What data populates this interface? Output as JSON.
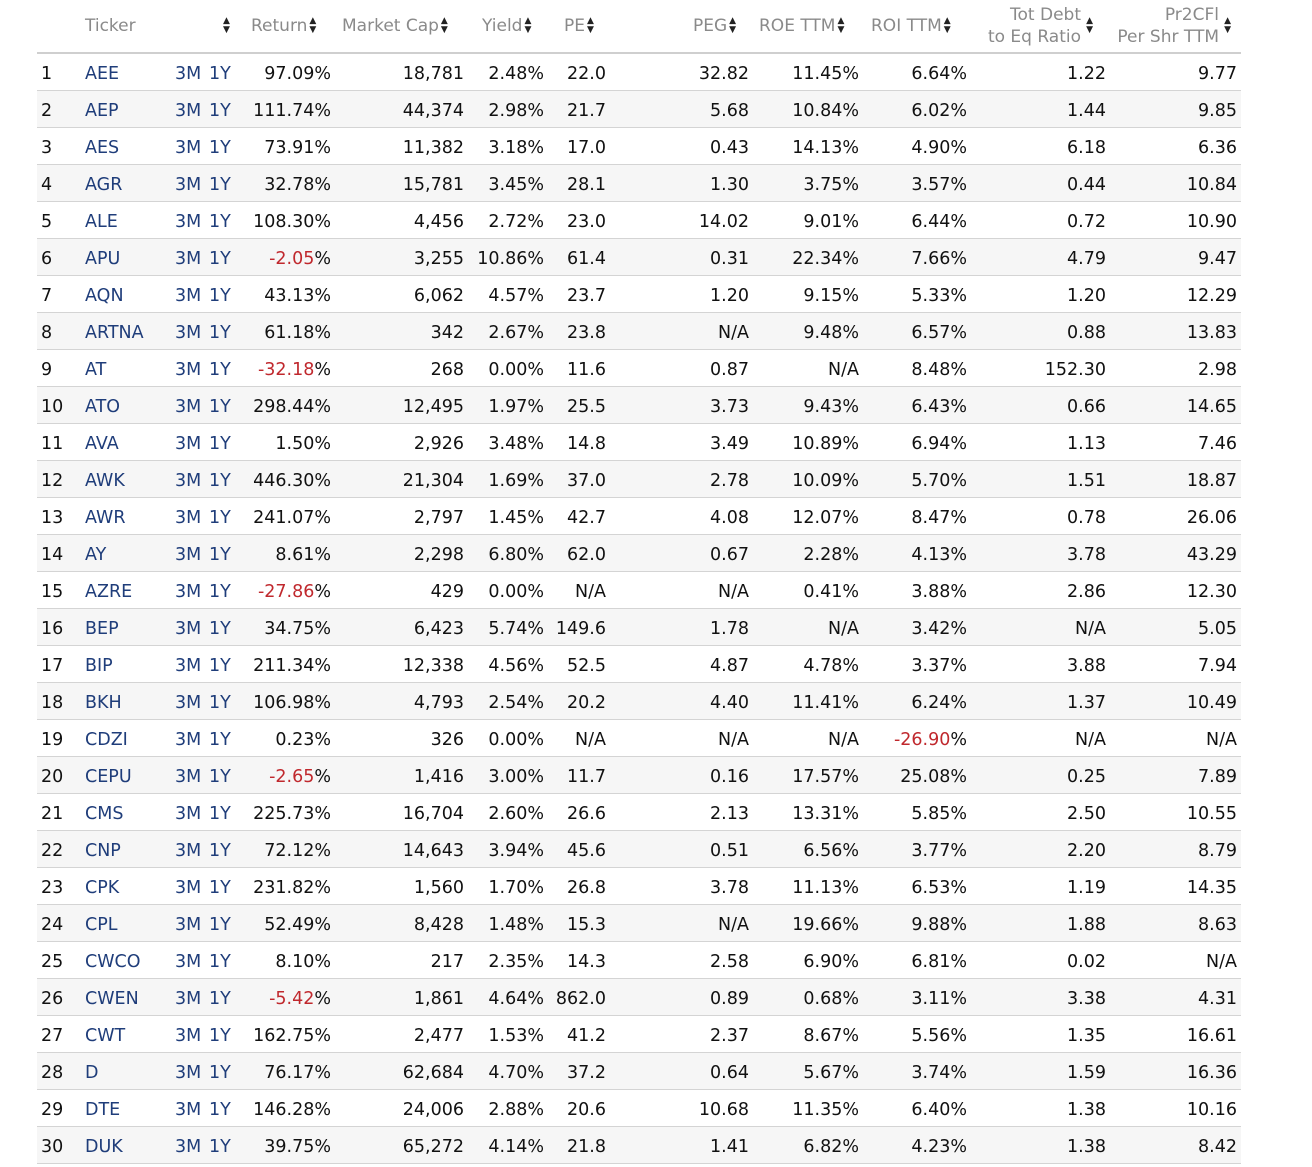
{
  "headers": {
    "ticker": "Ticker",
    "ret": "Return",
    "mcap": "Market Cap",
    "yield": "Yield",
    "pe": "PE",
    "peg": "PEG",
    "roe": "ROE TTM",
    "roi": "ROI TTM",
    "debt_line1": "Tot Debt",
    "debt_line2": "to Eq Ratio",
    "pr2_line1": "Pr2CFl",
    "pr2_line2": "Per Shr TTM"
  },
  "period_links": {
    "m3": "3M",
    "y1": "1Y"
  },
  "colors": {
    "link": "#1f3d7a",
    "negative": "#c0282d",
    "header_text": "#8a8a8a"
  },
  "rows": [
    {
      "n": "1",
      "ticker": "AEE",
      "ret": "97.09",
      "mcap": "18,781",
      "yld": "2.48%",
      "pe": "22.0",
      "peg": "32.82",
      "roe": "11.45%",
      "roi": "6.64%",
      "debt": "1.22",
      "pr2": "9.77"
    },
    {
      "n": "2",
      "ticker": "AEP",
      "ret": "111.74",
      "mcap": "44,374",
      "yld": "2.98%",
      "pe": "21.7",
      "peg": "5.68",
      "roe": "10.84%",
      "roi": "6.02%",
      "debt": "1.44",
      "pr2": "9.85"
    },
    {
      "n": "3",
      "ticker": "AES",
      "ret": "73.91",
      "mcap": "11,382",
      "yld": "3.18%",
      "pe": "17.0",
      "peg": "0.43",
      "roe": "14.13%",
      "roi": "4.90%",
      "debt": "6.18",
      "pr2": "6.36"
    },
    {
      "n": "4",
      "ticker": "AGR",
      "ret": "32.78",
      "mcap": "15,781",
      "yld": "3.45%",
      "pe": "28.1",
      "peg": "1.30",
      "roe": "3.75%",
      "roi": "3.57%",
      "debt": "0.44",
      "pr2": "10.84"
    },
    {
      "n": "5",
      "ticker": "ALE",
      "ret": "108.30",
      "mcap": "4,456",
      "yld": "2.72%",
      "pe": "23.0",
      "peg": "14.02",
      "roe": "9.01%",
      "roi": "6.44%",
      "debt": "0.72",
      "pr2": "10.90"
    },
    {
      "n": "6",
      "ticker": "APU",
      "ret": "-2.05",
      "mcap": "3,255",
      "yld": "10.86%",
      "pe": "61.4",
      "peg": "0.31",
      "roe": "22.34%",
      "roi": "7.66%",
      "debt": "4.79",
      "pr2": "9.47"
    },
    {
      "n": "7",
      "ticker": "AQN",
      "ret": "43.13",
      "mcap": "6,062",
      "yld": "4.57%",
      "pe": "23.7",
      "peg": "1.20",
      "roe": "9.15%",
      "roi": "5.33%",
      "debt": "1.20",
      "pr2": "12.29"
    },
    {
      "n": "8",
      "ticker": "ARTNA",
      "ret": "61.18",
      "mcap": "342",
      "yld": "2.67%",
      "pe": "23.8",
      "peg": "N/A",
      "roe": "9.48%",
      "roi": "6.57%",
      "debt": "0.88",
      "pr2": "13.83"
    },
    {
      "n": "9",
      "ticker": "AT",
      "ret": "-32.18",
      "mcap": "268",
      "yld": "0.00%",
      "pe": "11.6",
      "peg": "0.87",
      "roe": "N/A",
      "roi": "8.48%",
      "debt": "152.30",
      "pr2": "2.98"
    },
    {
      "n": "10",
      "ticker": "ATO",
      "ret": "298.44",
      "mcap": "12,495",
      "yld": "1.97%",
      "pe": "25.5",
      "peg": "3.73",
      "roe": "9.43%",
      "roi": "6.43%",
      "debt": "0.66",
      "pr2": "14.65"
    },
    {
      "n": "11",
      "ticker": "AVA",
      "ret": "1.50",
      "mcap": "2,926",
      "yld": "3.48%",
      "pe": "14.8",
      "peg": "3.49",
      "roe": "10.89%",
      "roi": "6.94%",
      "debt": "1.13",
      "pr2": "7.46"
    },
    {
      "n": "12",
      "ticker": "AWK",
      "ret": "446.30",
      "mcap": "21,304",
      "yld": "1.69%",
      "pe": "37.0",
      "peg": "2.78",
      "roe": "10.09%",
      "roi": "5.70%",
      "debt": "1.51",
      "pr2": "18.87"
    },
    {
      "n": "13",
      "ticker": "AWR",
      "ret": "241.07",
      "mcap": "2,797",
      "yld": "1.45%",
      "pe": "42.7",
      "peg": "4.08",
      "roe": "12.07%",
      "roi": "8.47%",
      "debt": "0.78",
      "pr2": "26.06"
    },
    {
      "n": "14",
      "ticker": "AY",
      "ret": "8.61",
      "mcap": "2,298",
      "yld": "6.80%",
      "pe": "62.0",
      "peg": "0.67",
      "roe": "2.28%",
      "roi": "4.13%",
      "debt": "3.78",
      "pr2": "43.29"
    },
    {
      "n": "15",
      "ticker": "AZRE",
      "ret": "-27.86",
      "mcap": "429",
      "yld": "0.00%",
      "pe": "N/A",
      "peg": "N/A",
      "roe": "0.41%",
      "roi": "3.88%",
      "debt": "2.86",
      "pr2": "12.30"
    },
    {
      "n": "16",
      "ticker": "BEP",
      "ret": "34.75",
      "mcap": "6,423",
      "yld": "5.74%",
      "pe": "149.6",
      "peg": "1.78",
      "roe": "N/A",
      "roi": "3.42%",
      "debt": "N/A",
      "pr2": "5.05"
    },
    {
      "n": "17",
      "ticker": "BIP",
      "ret": "211.34",
      "mcap": "12,338",
      "yld": "4.56%",
      "pe": "52.5",
      "peg": "4.87",
      "roe": "4.78%",
      "roi": "3.37%",
      "debt": "3.88",
      "pr2": "7.94"
    },
    {
      "n": "18",
      "ticker": "BKH",
      "ret": "106.98",
      "mcap": "4,793",
      "yld": "2.54%",
      "pe": "20.2",
      "peg": "4.40",
      "roe": "11.41%",
      "roi": "6.24%",
      "debt": "1.37",
      "pr2": "10.49"
    },
    {
      "n": "19",
      "ticker": "CDZI",
      "ret": "0.23",
      "mcap": "326",
      "yld": "0.00%",
      "pe": "N/A",
      "peg": "N/A",
      "roe": "N/A",
      "roi": "-26.90",
      "debt": "N/A",
      "pr2": "N/A"
    },
    {
      "n": "20",
      "ticker": "CEPU",
      "ret": "-2.65",
      "mcap": "1,416",
      "yld": "3.00%",
      "pe": "11.7",
      "peg": "0.16",
      "roe": "17.57%",
      "roi": "25.08%",
      "debt": "0.25",
      "pr2": "7.89"
    },
    {
      "n": "21",
      "ticker": "CMS",
      "ret": "225.73",
      "mcap": "16,704",
      "yld": "2.60%",
      "pe": "26.6",
      "peg": "2.13",
      "roe": "13.31%",
      "roi": "5.85%",
      "debt": "2.50",
      "pr2": "10.55"
    },
    {
      "n": "22",
      "ticker": "CNP",
      "ret": "72.12",
      "mcap": "14,643",
      "yld": "3.94%",
      "pe": "45.6",
      "peg": "0.51",
      "roe": "6.56%",
      "roi": "3.77%",
      "debt": "2.20",
      "pr2": "8.79"
    },
    {
      "n": "23",
      "ticker": "CPK",
      "ret": "231.82",
      "mcap": "1,560",
      "yld": "1.70%",
      "pe": "26.8",
      "peg": "3.78",
      "roe": "11.13%",
      "roi": "6.53%",
      "debt": "1.19",
      "pr2": "14.35"
    },
    {
      "n": "24",
      "ticker": "CPL",
      "ret": "52.49",
      "mcap": "8,428",
      "yld": "1.48%",
      "pe": "15.3",
      "peg": "N/A",
      "roe": "19.66%",
      "roi": "9.88%",
      "debt": "1.88",
      "pr2": "8.63"
    },
    {
      "n": "25",
      "ticker": "CWCO",
      "ret": "8.10",
      "mcap": "217",
      "yld": "2.35%",
      "pe": "14.3",
      "peg": "2.58",
      "roe": "6.90%",
      "roi": "6.81%",
      "debt": "0.02",
      "pr2": "N/A"
    },
    {
      "n": "26",
      "ticker": "CWEN",
      "ret": "-5.42",
      "mcap": "1,861",
      "yld": "4.64%",
      "pe": "862.0",
      "peg": "0.89",
      "roe": "0.68%",
      "roi": "3.11%",
      "debt": "3.38",
      "pr2": "4.31"
    },
    {
      "n": "27",
      "ticker": "CWT",
      "ret": "162.75",
      "mcap": "2,477",
      "yld": "1.53%",
      "pe": "41.2",
      "peg": "2.37",
      "roe": "8.67%",
      "roi": "5.56%",
      "debt": "1.35",
      "pr2": "16.61"
    },
    {
      "n": "28",
      "ticker": "D",
      "ret": "76.17",
      "mcap": "62,684",
      "yld": "4.70%",
      "pe": "37.2",
      "peg": "0.64",
      "roe": "5.67%",
      "roi": "3.74%",
      "debt": "1.59",
      "pr2": "16.36"
    },
    {
      "n": "29",
      "ticker": "DTE",
      "ret": "146.28",
      "mcap": "24,006",
      "yld": "2.88%",
      "pe": "20.6",
      "peg": "10.68",
      "roe": "11.35%",
      "roi": "6.40%",
      "debt": "1.38",
      "pr2": "10.16"
    },
    {
      "n": "30",
      "ticker": "DUK",
      "ret": "39.75",
      "mcap": "65,272",
      "yld": "4.14%",
      "pe": "21.8",
      "peg": "1.41",
      "roe": "6.82%",
      "roi": "4.23%",
      "debt": "1.38",
      "pr2": "8.42"
    }
  ]
}
